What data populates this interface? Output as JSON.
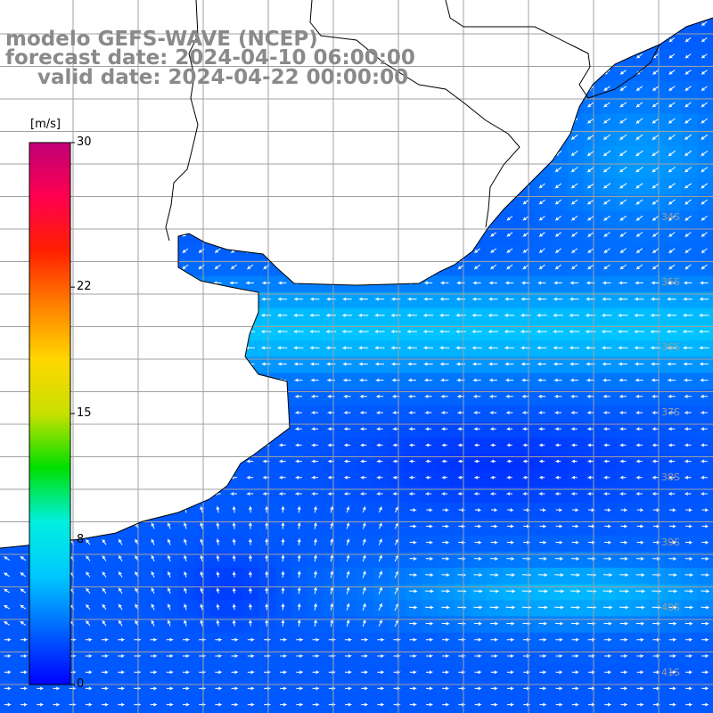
{
  "title": {
    "line1": "modelo GEFS-WAVE (NCEP)",
    "line2": "forecast date: 2024-04-10 06:00:00",
    "line3": "valid date: 2024-04-22 00:00:00"
  },
  "colorbar": {
    "unit": "[m/s]",
    "min": 0,
    "max": 30,
    "ticks": [
      "30",
      "22",
      "15",
      "8",
      "0"
    ],
    "tick_values": [
      30,
      22,
      15,
      8,
      0
    ],
    "colors": [
      "#0000ff",
      "#0064ff",
      "#00c8ff",
      "#00f0e0",
      "#00e000",
      "#c8e000",
      "#ffd700",
      "#ff8000",
      "#ff2000",
      "#ff0050",
      "#c00078"
    ]
  },
  "lat_labels": [
    "34S",
    "35S",
    "36S",
    "37S",
    "38S",
    "39S",
    "40S",
    "41S"
  ],
  "lat_label_values": [
    34,
    35,
    36,
    37,
    38,
    39,
    40,
    41
  ],
  "colors": {
    "sea_low": "#0022ff",
    "sea_mid": "#0070ff",
    "sea_high": "#00d8ff",
    "grid": "#a0a0a0",
    "coast": "#000000",
    "land": "#ffffff",
    "arrow": "#ffffff"
  }
}
